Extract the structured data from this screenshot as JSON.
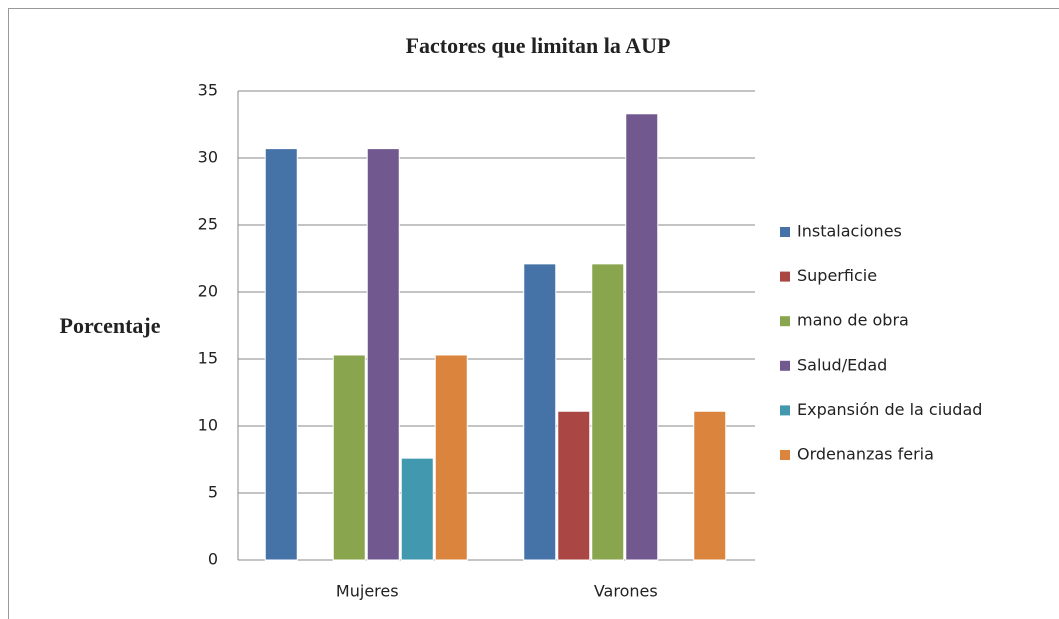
{
  "chart_data": {
    "type": "bar",
    "title": "Factores que limitan la AUP",
    "y_label": "Porcentaje",
    "categories": [
      "Mujeres",
      "Varones"
    ],
    "series": [
      {
        "name": "Instalaciones",
        "color": "#4572a7",
        "values": [
          30.7,
          22.1
        ]
      },
      {
        "name": "Superficie",
        "color": "#aa4643",
        "values": [
          0,
          11.1
        ]
      },
      {
        "name": "mano de obra",
        "color": "#89a54e",
        "values": [
          15.3,
          22.1
        ]
      },
      {
        "name": "Salud/Edad",
        "color": "#71588f",
        "values": [
          30.7,
          33.3
        ]
      },
      {
        "name": "Expansión de la ciudad",
        "color": "#4198af",
        "values": [
          7.6,
          0
        ]
      },
      {
        "name": "Ordenanzas feria",
        "color": "#db843d",
        "values": [
          15.3,
          11.1
        ]
      }
    ],
    "ylim": [
      0,
      35
    ],
    "yticks": [
      0,
      5,
      10,
      15,
      20,
      25,
      30,
      35
    ],
    "grid": true,
    "legend": "right"
  }
}
